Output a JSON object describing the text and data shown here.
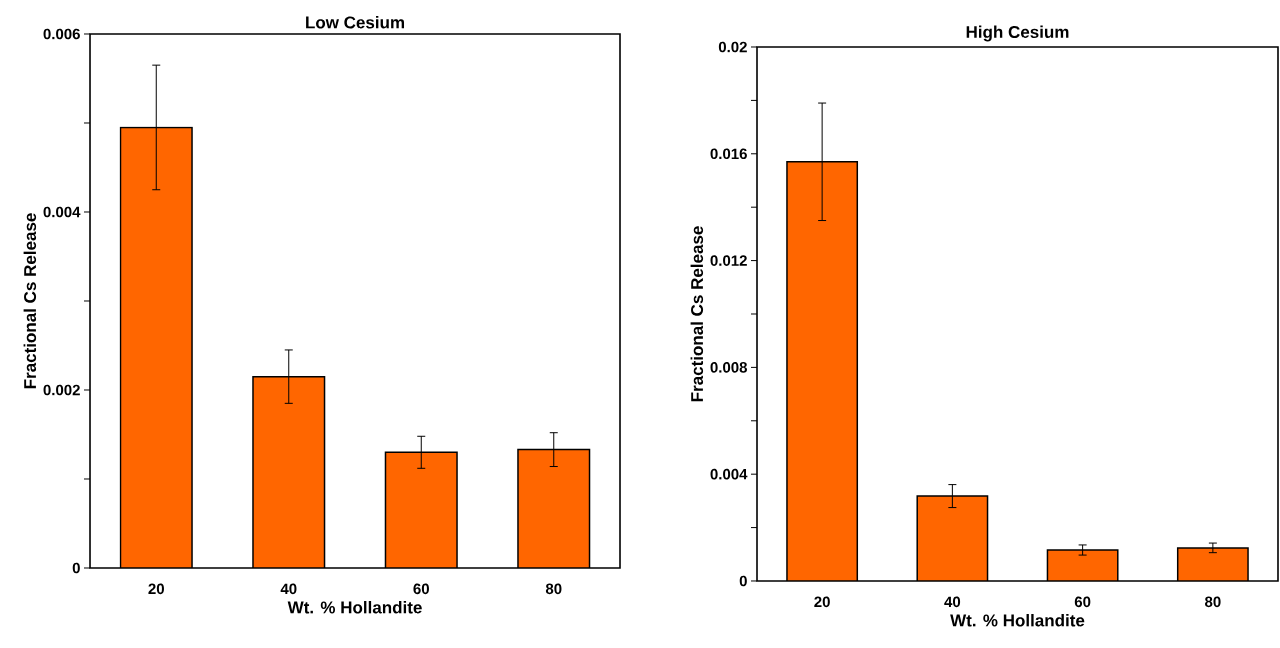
{
  "chart_data": [
    {
      "type": "bar",
      "title": "Low Cesium",
      "xlabel": "Wt. % Hollandite",
      "ylabel": "Fractional Cs Release",
      "categories": [
        "20",
        "40",
        "60",
        "80"
      ],
      "values": [
        0.00495,
        0.00215,
        0.0013,
        0.00133
      ],
      "errors": [
        0.0007,
        0.0003,
        0.00018,
        0.00019
      ],
      "color": "#ff6600",
      "ylim": [
        0,
        0.006
      ],
      "yticks": [
        0,
        {
          "value": 0.001,
          "label": null
        },
        0.002,
        {
          "value": 0.003,
          "label": null
        },
        0.004,
        {
          "value": 0.005,
          "label": null
        },
        0.006
      ]
    },
    {
      "type": "bar",
      "title": "High Cesium",
      "xlabel": "Wt. % Hollandite",
      "ylabel": "Fractional Cs Release",
      "categories": [
        "20",
        "40",
        "60",
        "80"
      ],
      "values": [
        0.0157,
        0.00318,
        0.00116,
        0.00124
      ],
      "errors": [
        0.0022,
        0.00043,
        0.00019,
        0.00018
      ],
      "color": "#ff6600",
      "ylim": [
        0,
        0.02
      ],
      "yticks": [
        0,
        {
          "value": 0.002,
          "label": null
        },
        0.004,
        {
          "value": 0.006,
          "label": null
        },
        0.008,
        {
          "value": 0.01,
          "label": null
        },
        0.012,
        {
          "value": 0.014,
          "label": null
        },
        0.016,
        {
          "value": 0.018,
          "label": null
        },
        0.02
      ]
    }
  ]
}
